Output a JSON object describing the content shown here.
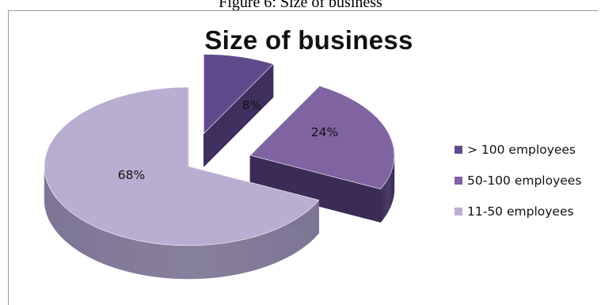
{
  "figure_caption": "Figure 6: Size of business",
  "chart_data": {
    "type": "pie",
    "title": "Size of business",
    "slices": [
      {
        "label": "> 100 employees",
        "value": 8,
        "display": "8%",
        "color": "#5f4b8b",
        "side_color": "#3f2f5f"
      },
      {
        "label": "50-100 employees",
        "value": 24,
        "display": "24%",
        "color": "#8064a2",
        "side_color": "#3a2c55"
      },
      {
        "label": "11-50 employees",
        "value": 68,
        "display": "68%",
        "color": "#b9aed1",
        "side_color": "#7d7594"
      }
    ],
    "legend_position": "right",
    "style": "3d-exploded"
  }
}
